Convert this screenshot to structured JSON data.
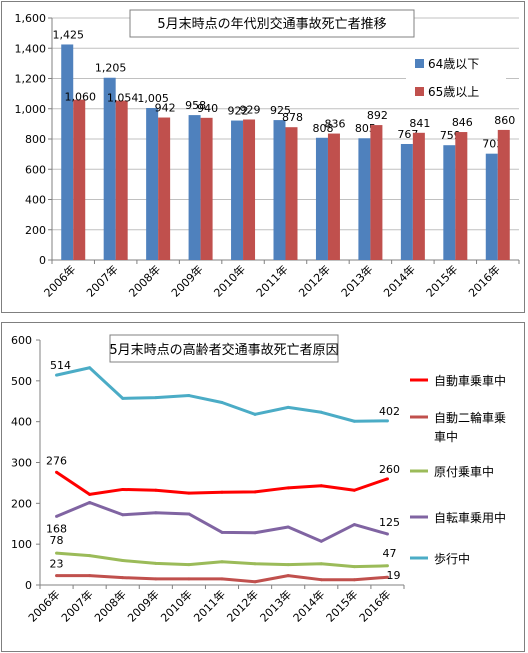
{
  "chart_data": [
    {
      "type": "bar",
      "title": "5月末時点の年代別交通事故死亡者推移",
      "categories": [
        "2006年",
        "2007年",
        "2008年",
        "2009年",
        "2010年",
        "2011年",
        "2012年",
        "2013年",
        "2014年",
        "2015年",
        "2016年"
      ],
      "series": [
        {
          "name": "64歳以下",
          "color": "#4f81bd",
          "values": [
            1425,
            1205,
            1005,
            958,
            922,
            925,
            808,
            805,
            767,
            759,
            703
          ]
        },
        {
          "name": "65歳以上",
          "color": "#c0504d",
          "values": [
            1060,
            1054,
            942,
            940,
            929,
            878,
            836,
            892,
            841,
            846,
            860
          ]
        }
      ],
      "ylim": [
        0,
        1600
      ],
      "yticks": [
        "0",
        "200",
        "400",
        "600",
        "800",
        "1,000",
        "1,200",
        "1,400",
        "1,600"
      ],
      "data_labels": [
        [
          "1,425",
          "1,205",
          "1,005",
          "958",
          "922",
          "925",
          "808",
          "805",
          "767",
          "759",
          "703"
        ],
        [
          "1,060",
          "1,054",
          "942",
          "940",
          "929",
          "878",
          "836",
          "892",
          "841",
          "846",
          "860"
        ]
      ],
      "grid": true,
      "legend": "right"
    },
    {
      "type": "line",
      "title": "5月末時点の高齢者交通事故死亡者原因",
      "categories": [
        "2006年",
        "2007年",
        "2008年",
        "2009年",
        "2010年",
        "2011年",
        "2012年",
        "2013年",
        "2014年",
        "2015年",
        "2016年"
      ],
      "series": [
        {
          "name": "自動車乗車中",
          "color": "#ff0000",
          "values": [
            276,
            222,
            234,
            232,
            225,
            227,
            228,
            238,
            243,
            232,
            260
          ]
        },
        {
          "name": "自動二輪車乗車中",
          "color": "#c0504d",
          "values": [
            23,
            23,
            18,
            15,
            15,
            15,
            8,
            23,
            13,
            13,
            19
          ]
        },
        {
          "name": "原付乗車中",
          "color": "#9bbb59",
          "values": [
            78,
            72,
            60,
            53,
            50,
            57,
            52,
            50,
            52,
            45,
            47
          ]
        },
        {
          "name": "自転車乗用中",
          "color": "#8064a2",
          "values": [
            168,
            202,
            172,
            177,
            174,
            129,
            128,
            142,
            107,
            148,
            125
          ]
        },
        {
          "name": "歩行中",
          "color": "#4bacc6",
          "values": [
            514,
            532,
            457,
            459,
            464,
            447,
            418,
            435,
            423,
            401,
            402
          ]
        }
      ],
      "legend_lines": [
        [
          "自動車乗車中"
        ],
        [
          "自動二輪車乗",
          "車中"
        ],
        [
          "原付乗車中"
        ],
        [
          "自転車乗用中"
        ],
        [
          "歩行中"
        ]
      ],
      "ylim": [
        0,
        600
      ],
      "yticks": [
        "0",
        "100",
        "200",
        "300",
        "400",
        "500",
        "600"
      ],
      "data_labels": [
        {
          "series": 0,
          "index": 0,
          "text": "276"
        },
        {
          "series": 0,
          "index": 10,
          "text": "260"
        },
        {
          "series": 1,
          "index": 0,
          "text": "23"
        },
        {
          "series": 1,
          "index": 10,
          "text": "19"
        },
        {
          "series": 2,
          "index": 0,
          "text": "78"
        },
        {
          "series": 2,
          "index": 10,
          "text": "47"
        },
        {
          "series": 3,
          "index": 0,
          "text": "168"
        },
        {
          "series": 3,
          "index": 10,
          "text": "125"
        },
        {
          "series": 4,
          "index": 0,
          "text": "514"
        },
        {
          "series": 4,
          "index": 10,
          "text": "402"
        }
      ],
      "grid": false,
      "legend": "right"
    }
  ]
}
